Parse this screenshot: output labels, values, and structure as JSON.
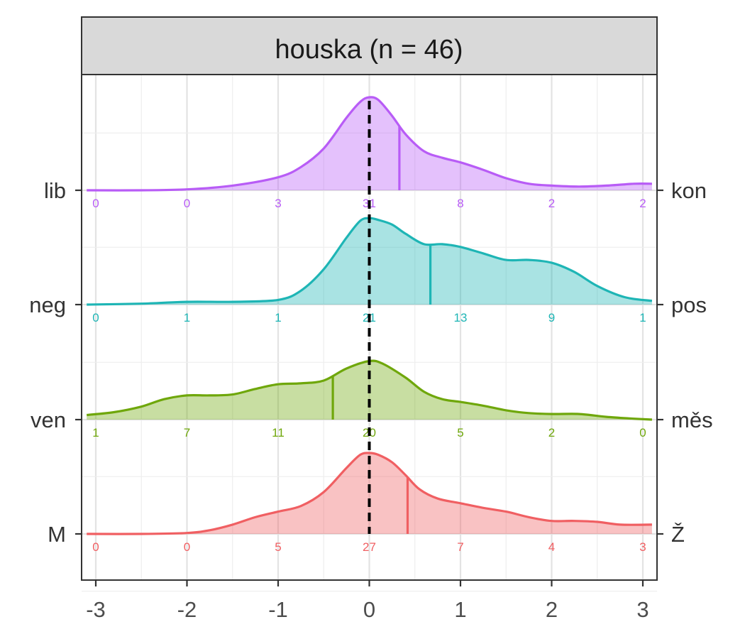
{
  "chart_data": {
    "type": "ridgeline-density",
    "title": "houska (n = 46)",
    "xlim": [
      -3.1,
      3.1
    ],
    "x_ticks": [
      -3,
      -2,
      -1,
      0,
      1,
      2,
      3
    ],
    "x_tick_labels": [
      "-3",
      "-2",
      "-1",
      "0",
      "1",
      "2",
      "3"
    ],
    "grid": true,
    "reference_line_x": 0,
    "count_positions": [
      -3,
      -2,
      -1,
      0,
      1,
      2,
      3
    ],
    "rows": [
      {
        "left_label": "lib",
        "right_label": "kon",
        "color": "#B85CF6",
        "mean": 0.33,
        "counts": [
          "0",
          "0",
          "3",
          "31",
          "8",
          "2",
          "2"
        ],
        "density": [
          [
            -3.1,
            0.0
          ],
          [
            -2.5,
            0.0
          ],
          [
            -2.0,
            0.01
          ],
          [
            -1.5,
            0.05
          ],
          [
            -1.0,
            0.14
          ],
          [
            -0.75,
            0.25
          ],
          [
            -0.5,
            0.45
          ],
          [
            -0.25,
            0.78
          ],
          [
            -0.1,
            0.95
          ],
          [
            0.0,
            1.0
          ],
          [
            0.1,
            0.97
          ],
          [
            0.25,
            0.8
          ],
          [
            0.4,
            0.6
          ],
          [
            0.6,
            0.42
          ],
          [
            0.8,
            0.35
          ],
          [
            1.0,
            0.3
          ],
          [
            1.25,
            0.22
          ],
          [
            1.5,
            0.13
          ],
          [
            1.75,
            0.07
          ],
          [
            2.0,
            0.05
          ],
          [
            2.3,
            0.04
          ],
          [
            2.6,
            0.05
          ],
          [
            2.9,
            0.07
          ],
          [
            3.1,
            0.07
          ]
        ]
      },
      {
        "left_label": "neg",
        "right_label": "pos",
        "color": "#1EB5B5",
        "mean": 0.67,
        "counts": [
          "0",
          "1",
          "1",
          "21",
          "13",
          "9",
          "1"
        ],
        "density": [
          [
            -3.1,
            0.0
          ],
          [
            -2.5,
            0.01
          ],
          [
            -2.0,
            0.03
          ],
          [
            -1.5,
            0.03
          ],
          [
            -1.0,
            0.05
          ],
          [
            -0.75,
            0.15
          ],
          [
            -0.5,
            0.38
          ],
          [
            -0.25,
            0.72
          ],
          [
            -0.1,
            0.9
          ],
          [
            0.0,
            0.93
          ],
          [
            0.1,
            0.91
          ],
          [
            0.25,
            0.86
          ],
          [
            0.4,
            0.76
          ],
          [
            0.6,
            0.65
          ],
          [
            0.8,
            0.65
          ],
          [
            1.0,
            0.62
          ],
          [
            1.25,
            0.55
          ],
          [
            1.5,
            0.48
          ],
          [
            1.75,
            0.48
          ],
          [
            2.0,
            0.45
          ],
          [
            2.25,
            0.35
          ],
          [
            2.5,
            0.2
          ],
          [
            2.8,
            0.08
          ],
          [
            3.1,
            0.04
          ]
        ]
      },
      {
        "left_label": "ven",
        "right_label": "měs",
        "color": "#6FA70B",
        "mean": -0.4,
        "counts": [
          "1",
          "7",
          "11",
          "20",
          "5",
          "2",
          "0"
        ],
        "density": [
          [
            -3.1,
            0.05
          ],
          [
            -2.8,
            0.08
          ],
          [
            -2.5,
            0.14
          ],
          [
            -2.25,
            0.22
          ],
          [
            -2.0,
            0.26
          ],
          [
            -1.75,
            0.26
          ],
          [
            -1.5,
            0.27
          ],
          [
            -1.25,
            0.33
          ],
          [
            -1.0,
            0.38
          ],
          [
            -0.75,
            0.39
          ],
          [
            -0.5,
            0.42
          ],
          [
            -0.25,
            0.55
          ],
          [
            0.0,
            0.63
          ],
          [
            0.15,
            0.6
          ],
          [
            0.4,
            0.45
          ],
          [
            0.6,
            0.3
          ],
          [
            0.8,
            0.22
          ],
          [
            1.0,
            0.19
          ],
          [
            1.25,
            0.15
          ],
          [
            1.5,
            0.1
          ],
          [
            1.75,
            0.07
          ],
          [
            2.0,
            0.06
          ],
          [
            2.3,
            0.06
          ],
          [
            2.6,
            0.03
          ],
          [
            2.9,
            0.01
          ],
          [
            3.1,
            0.0
          ]
        ]
      },
      {
        "left_label": "M",
        "right_label": "Ž",
        "color": "#F05F62",
        "mean": 0.42,
        "counts": [
          "0",
          "0",
          "5",
          "27",
          "7",
          "4",
          "3"
        ],
        "density": [
          [
            -3.1,
            0.0
          ],
          [
            -2.5,
            0.0
          ],
          [
            -2.0,
            0.01
          ],
          [
            -1.75,
            0.04
          ],
          [
            -1.5,
            0.1
          ],
          [
            -1.25,
            0.18
          ],
          [
            -1.0,
            0.24
          ],
          [
            -0.75,
            0.3
          ],
          [
            -0.5,
            0.45
          ],
          [
            -0.25,
            0.71
          ],
          [
            -0.1,
            0.85
          ],
          [
            0.0,
            0.87
          ],
          [
            0.1,
            0.85
          ],
          [
            0.25,
            0.77
          ],
          [
            0.4,
            0.63
          ],
          [
            0.55,
            0.48
          ],
          [
            0.75,
            0.38
          ],
          [
            1.0,
            0.33
          ],
          [
            1.25,
            0.28
          ],
          [
            1.5,
            0.24
          ],
          [
            1.75,
            0.18
          ],
          [
            2.0,
            0.14
          ],
          [
            2.25,
            0.14
          ],
          [
            2.5,
            0.13
          ],
          [
            2.75,
            0.1
          ],
          [
            3.1,
            0.1
          ]
        ]
      }
    ]
  }
}
